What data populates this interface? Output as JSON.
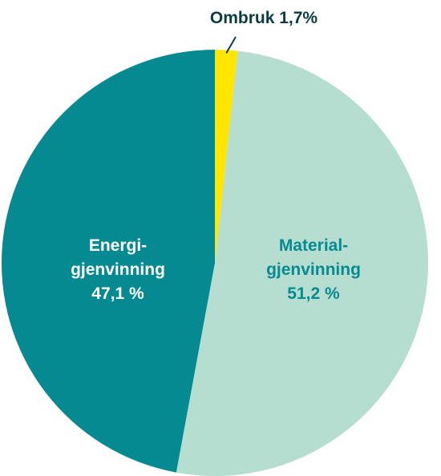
{
  "chart_data": {
    "type": "pie",
    "slices": [
      {
        "category": "Ombruk",
        "value": 1.7,
        "label": "Ombruk 1,7%",
        "color": "#FFE600",
        "label_color": "#0B3C44",
        "label_lines": [
          "Ombruk 1,7%"
        ]
      },
      {
        "category": "Materialgjenvinning",
        "value": 51.2,
        "label": "Material-gjenvinning 51,2 %",
        "color": "#B5DDD0",
        "label_color": "#088A91",
        "label_lines": [
          "Material-",
          "gjenvinning",
          "51,2 %"
        ]
      },
      {
        "category": "Energigjenvinning",
        "value": 47.1,
        "label": "Energi-gjenvinning 47,1 %",
        "color": "#068A91",
        "label_color": "#FFFFFF",
        "label_lines": [
          "Energi-",
          "gjenvinning",
          "47,1 %"
        ]
      }
    ],
    "start": "12 o'clock",
    "direction": "clockwise",
    "legend": "none"
  }
}
